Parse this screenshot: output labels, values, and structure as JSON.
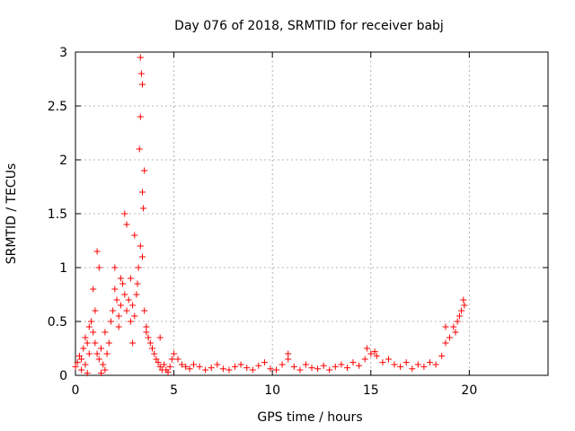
{
  "chart_data": {
    "type": "scatter",
    "title": "Day 076 of 2018, SRMTID for receiver babj",
    "xlabel": "GPS time / hours",
    "ylabel": "SRMTID / TECUs",
    "xlim": [
      0,
      24
    ],
    "ylim": [
      0,
      3
    ],
    "xticks": [
      0,
      5,
      10,
      15,
      20
    ],
    "yticks": [
      0,
      0.5,
      1,
      1.5,
      2,
      2.5,
      3
    ],
    "xtick_labels": [
      "0",
      "5",
      "10",
      "15",
      "20"
    ],
    "ytick_labels": [
      "0",
      "0.5",
      "1",
      "1.5",
      "2",
      "2.5",
      "3"
    ],
    "grid": true,
    "marker": "+",
    "color": "#ff0000",
    "series": [
      {
        "name": "SRMTID",
        "x": [
          0.0,
          0.1,
          0.2,
          0.3,
          0.4,
          0.5,
          0.6,
          0.7,
          0.8,
          0.9,
          1.0,
          1.1,
          1.2,
          1.3,
          1.4,
          1.5,
          1.6,
          1.7,
          1.8,
          1.9,
          2.0,
          2.1,
          2.2,
          2.3,
          2.4,
          2.5,
          2.6,
          2.7,
          2.8,
          2.9,
          3.0,
          3.1,
          3.2,
          3.3,
          3.4,
          3.5,
          3.6,
          3.7,
          3.8,
          3.9,
          4.0,
          4.1,
          4.2,
          4.3,
          4.4,
          4.5,
          4.6,
          4.7,
          4.8,
          4.9,
          5.0,
          5.2,
          5.4,
          5.6,
          5.8,
          6.0,
          6.3,
          6.6,
          6.9,
          7.2,
          7.5,
          7.8,
          8.1,
          8.4,
          8.7,
          9.0,
          9.3,
          9.6,
          9.9,
          10.2,
          10.5,
          10.8,
          11.1,
          11.4,
          11.7,
          12.0,
          12.3,
          12.6,
          12.9,
          13.2,
          13.5,
          13.8,
          14.1,
          14.4,
          14.7,
          15.0,
          15.3,
          15.6,
          15.9,
          16.2,
          16.5,
          16.8,
          17.1,
          17.4,
          17.7,
          18.0,
          18.3,
          18.6,
          18.8,
          19.0,
          19.2,
          19.4,
          19.6,
          19.7,
          1.1,
          1.2,
          2.5,
          2.6,
          3.3,
          3.35,
          3.4,
          3.3,
          3.25,
          3.5,
          3.4,
          0.9,
          1.0,
          2.0,
          2.3,
          2.8,
          3.0,
          3.6,
          0.5,
          0.7,
          1.5,
          2.2,
          2.9,
          3.15,
          3.45,
          4.3,
          10.8,
          14.8,
          15.2,
          18.8,
          19.3,
          19.5,
          19.75,
          0.3,
          0.6,
          1.3
        ],
        "y": [
          0.08,
          0.12,
          0.18,
          0.15,
          0.25,
          0.35,
          0.3,
          0.45,
          0.5,
          0.4,
          0.3,
          0.2,
          0.15,
          0.25,
          0.1,
          0.05,
          0.2,
          0.3,
          0.5,
          0.6,
          0.8,
          0.7,
          0.55,
          0.65,
          0.85,
          0.75,
          0.6,
          0.7,
          0.9,
          0.65,
          0.55,
          0.75,
          1.0,
          1.2,
          1.1,
          0.6,
          0.45,
          0.35,
          0.3,
          0.25,
          0.2,
          0.15,
          0.12,
          0.08,
          0.05,
          0.1,
          0.05,
          0.03,
          0.08,
          0.15,
          0.2,
          0.15,
          0.1,
          0.08,
          0.06,
          0.1,
          0.08,
          0.05,
          0.07,
          0.1,
          0.06,
          0.05,
          0.08,
          0.1,
          0.07,
          0.05,
          0.09,
          0.12,
          0.06,
          0.05,
          0.1,
          0.15,
          0.08,
          0.05,
          0.1,
          0.07,
          0.06,
          0.09,
          0.05,
          0.08,
          0.1,
          0.07,
          0.12,
          0.09,
          0.15,
          0.2,
          0.18,
          0.12,
          0.15,
          0.1,
          0.08,
          0.12,
          0.06,
          0.1,
          0.08,
          0.12,
          0.1,
          0.18,
          0.3,
          0.35,
          0.45,
          0.5,
          0.6,
          0.7,
          1.15,
          1.0,
          1.5,
          1.4,
          2.95,
          2.8,
          2.7,
          2.4,
          2.1,
          1.9,
          1.7,
          0.8,
          0.6,
          1.0,
          0.9,
          0.5,
          1.3,
          0.4,
          0.1,
          0.2,
          0.4,
          0.45,
          0.3,
          0.85,
          1.55,
          0.35,
          0.2,
          0.25,
          0.22,
          0.45,
          0.4,
          0.55,
          0.65,
          0.05,
          0.02,
          0.02
        ]
      }
    ]
  }
}
